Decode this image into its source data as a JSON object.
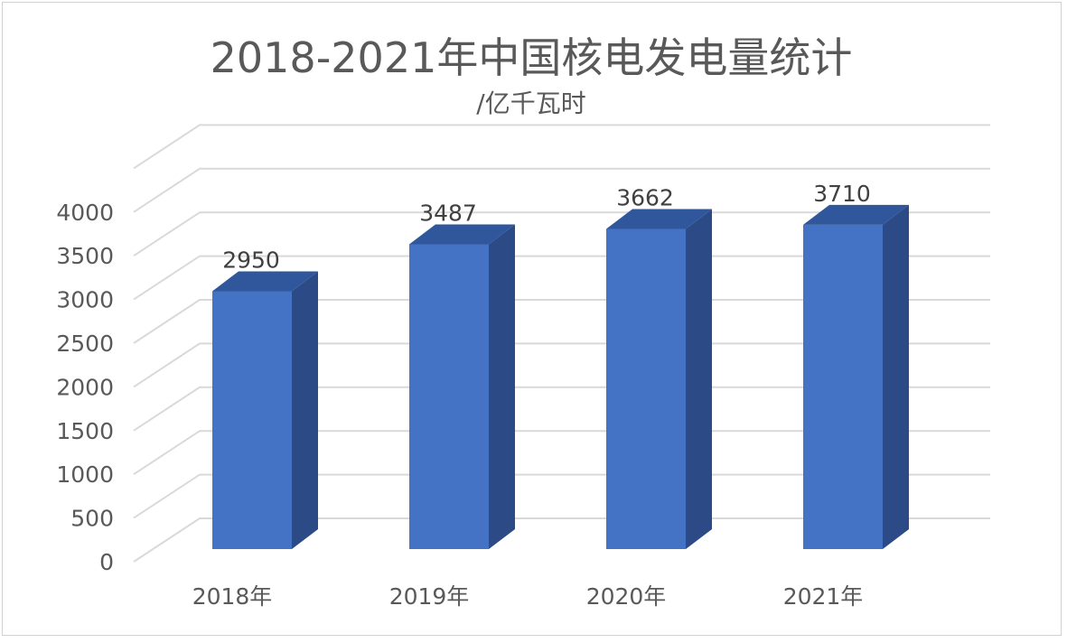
{
  "chart_data": {
    "type": "bar",
    "title": "2018-2021年中国核电发电量统计",
    "subtitle": "/亿千瓦时",
    "categories": [
      "2018年",
      "2019年",
      "2020年",
      "2021年"
    ],
    "series": [
      {
        "values": [
          2950,
          3487,
          3662,
          3710
        ]
      }
    ],
    "data_labels": [
      "2950",
      "3487",
      "3662",
      "3710"
    ],
    "yticks": [
      "0",
      "500",
      "1000",
      "1500",
      "2000",
      "2500",
      "3000",
      "3500",
      "4000"
    ],
    "ylim": [
      0,
      4500
    ],
    "grid": true,
    "legend": "none",
    "style": "3d-column",
    "colors": {
      "front": "#4472c4",
      "side": "#2b4a86",
      "top": "#30579b",
      "grid": "#d9d9d9"
    }
  }
}
